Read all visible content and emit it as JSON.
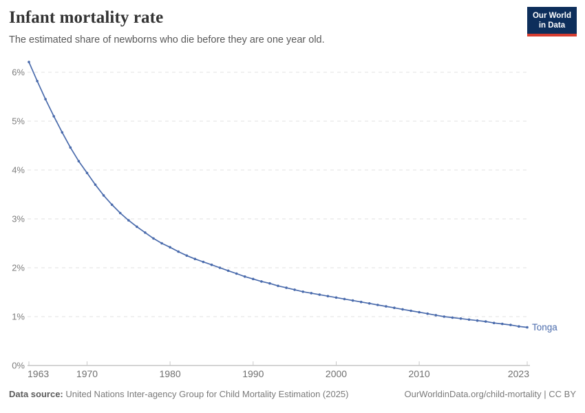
{
  "header": {
    "title": "Infant mortality rate",
    "subtitle": "The estimated share of newborns who die before they are one year old.",
    "logo": {
      "line1": "Our World",
      "line2": "in Data"
    }
  },
  "footer": {
    "source_label": "Data source:",
    "source_text": " United Nations Inter-agency Group for Child Mortality Estimation (2025)",
    "citation": "OurWorldinData.org/child-mortality | CC BY"
  },
  "colors": {
    "series_blue": "#4a6bac",
    "grid_gray": "#e0e0e0",
    "axis_gray": "#a8a8a8",
    "tick_gray": "#c9c9c9",
    "label_gray": "#7d7d7d",
    "logo_navy": "#0d2e5b",
    "logo_red": "#d63c2f"
  },
  "chart_data": {
    "type": "line",
    "title": "Infant mortality rate",
    "subtitle": "The estimated share of newborns who die before they are one year old.",
    "ylabel": "",
    "xlabel": "",
    "ylim": [
      0,
      6.5
    ],
    "yticks": [
      0,
      1,
      2,
      3,
      4,
      5,
      6
    ],
    "ytick_labels": [
      "0%",
      "1%",
      "2%",
      "3%",
      "4%",
      "5%",
      "6%"
    ],
    "xticks": [
      1963,
      1970,
      1980,
      1990,
      2000,
      2010,
      2023
    ],
    "grid": "horizontal-dashed",
    "legend_position": "end-of-line",
    "series": [
      {
        "name": "Tonga",
        "color": "#4a6bac",
        "x": [
          1963,
          1964,
          1965,
          1966,
          1967,
          1968,
          1969,
          1970,
          1971,
          1972,
          1973,
          1974,
          1975,
          1976,
          1977,
          1978,
          1979,
          1980,
          1981,
          1982,
          1983,
          1984,
          1985,
          1986,
          1987,
          1988,
          1989,
          1990,
          1991,
          1992,
          1993,
          1994,
          1995,
          1996,
          1997,
          1998,
          1999,
          2000,
          2001,
          2002,
          2003,
          2004,
          2005,
          2006,
          2007,
          2008,
          2009,
          2010,
          2011,
          2012,
          2013,
          2014,
          2015,
          2016,
          2017,
          2018,
          2019,
          2020,
          2021,
          2022,
          2023
        ],
        "values": [
          6.21,
          5.82,
          5.45,
          5.1,
          4.77,
          4.46,
          4.18,
          3.94,
          3.7,
          3.48,
          3.29,
          3.12,
          2.97,
          2.84,
          2.72,
          2.6,
          2.5,
          2.42,
          2.33,
          2.25,
          2.18,
          2.12,
          2.06,
          2.0,
          1.94,
          1.88,
          1.82,
          1.77,
          1.72,
          1.68,
          1.63,
          1.59,
          1.55,
          1.51,
          1.48,
          1.45,
          1.42,
          1.39,
          1.36,
          1.33,
          1.3,
          1.27,
          1.24,
          1.21,
          1.18,
          1.15,
          1.12,
          1.09,
          1.06,
          1.03,
          1.0,
          0.98,
          0.96,
          0.94,
          0.92,
          0.9,
          0.87,
          0.85,
          0.83,
          0.8,
          0.78
        ]
      }
    ]
  }
}
